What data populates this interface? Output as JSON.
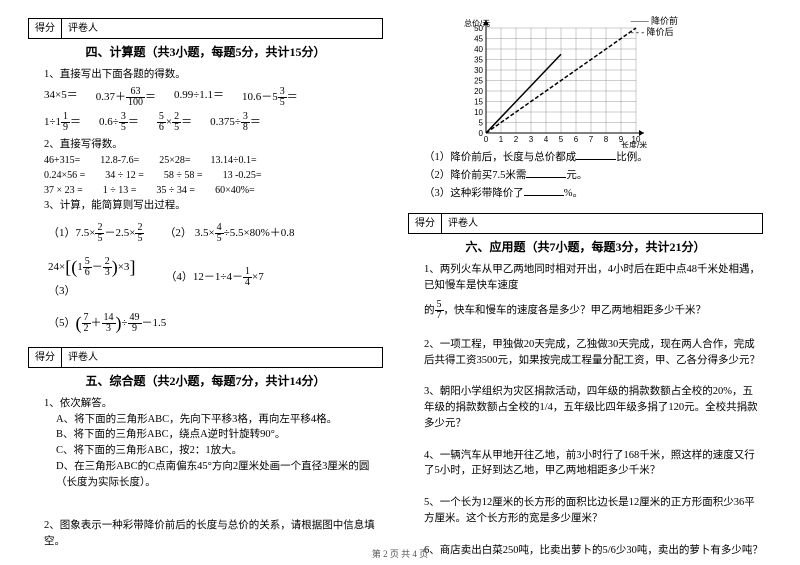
{
  "score_labels": {
    "score": "得分",
    "reviewer": "评卷人"
  },
  "section4": {
    "title": "四、计算题（共3小题，每题5分，共计15分）",
    "q1_intro": "1、直接写出下面各题的得数。",
    "row1": [
      "34×5＝",
      "0.37＋",
      "63",
      "100",
      "＝",
      "0.99÷1.1＝",
      "10.6－5",
      "3",
      "5",
      "＝"
    ],
    "row2_a": "1÷1",
    "row2_af": [
      "1",
      "9"
    ],
    "row2_ae": "＝",
    "row2_b": "0.6÷",
    "row2_bf": [
      "3",
      "5"
    ],
    "row2_be": "＝",
    "row2_cf1": [
      "5",
      "6"
    ],
    "row2_cm": "×",
    "row2_cf2": [
      "2",
      "5"
    ],
    "row2_ce": "＝",
    "row2_d": "0.375÷",
    "row2_df": [
      "3",
      "8"
    ],
    "row2_de": "＝",
    "q2_intro": "2、直接写得数。",
    "nr1": [
      "46+315=",
      "12.8-7.6=",
      "25×28=",
      "13.14÷0.1="
    ],
    "nr2": [
      "0.24×56 =",
      "34 ÷ 12 =",
      "58 ÷ 58 =",
      "13 -0.25="
    ],
    "nr3": [
      "37 × 23 =",
      "1 ÷ 13 =",
      "35 ÷ 34 =",
      "60×40%="
    ],
    "q3_intro": "3、计算，能简算则写出过程。",
    "e1_a": "（1）7.5×",
    "e1_f": [
      "2",
      "5"
    ],
    "e1_b": "－2.5×",
    "e1_c": "（2）",
    "e1_d": "3.5×",
    "e1_df": [
      "4",
      "5"
    ],
    "e1_e": "÷5.5×80%＋0.8",
    "e3_a": "24×",
    "e3_f1": [
      "5",
      "6"
    ],
    "e3_m": "－",
    "e3_f2": [
      "2",
      "3"
    ],
    "e3_b": "×3",
    "e4_a": "（4）12－1÷4－",
    "e4_f": [
      "1",
      "4"
    ],
    "e4_b": "×7",
    "e5_a": "（5）",
    "e5_f1": [
      "7",
      "2"
    ],
    "e5_m": "＋",
    "e5_f2": [
      "14",
      "3"
    ],
    "e5_b": "÷",
    "e5_f3": [
      "49",
      "9"
    ],
    "e5_c": "－1.5",
    "label3": "（3）"
  },
  "section5": {
    "title": "五、综合题（共2小题，每题7分，共计14分）",
    "q1": "1、依次解答。",
    "a": "A、将下面的三角形ABC，先向下平移3格，再向左平移4格。",
    "b": "B、将下面的三角形ABC，绕点A逆时针旋转90°。",
    "c": "C、将下面的三角形ABC，按2：1放大。",
    "d": "D、在三角形ABC的C点南偏东45°方向2厘米处画一个直径3厘米的圆（长度为实际长度）。",
    "q2": "2、图象表示一种彩带降价前后的长度与总价的关系，请根据图中信息填空。"
  },
  "chart": {
    "ylabel": "总价/元",
    "xlabel": "长度/米",
    "yticks": [
      0,
      5,
      10,
      15,
      20,
      25,
      30,
      35,
      40,
      45,
      50
    ],
    "xticks": [
      0,
      1,
      2,
      3,
      4,
      5,
      6,
      7,
      8,
      9,
      10
    ],
    "legend_before": "降价前",
    "legend_after": "降价后",
    "line_before": [
      {
        "x": 0,
        "y": 0
      },
      {
        "x": 5,
        "y": 37.5
      }
    ],
    "line_after": [
      {
        "x": 0,
        "y": 0
      },
      {
        "x": 10,
        "y": 50
      }
    ],
    "dash_before": "0",
    "dash_after": "4 2",
    "grid_color": "#999",
    "axis_color": "#000",
    "q1": "（1）降价前后，长度与总价都成",
    "q1b": "比例。",
    "q2": "（2）降价前买7.5米需",
    "q2b": "元。",
    "q3": "（3）这种彩带降价了",
    "q3b": "%。"
  },
  "section6": {
    "title": "六、应用题（共7小题，每题3分，共计21分）",
    "q1a": "1、两列火车从甲乙两地同时相对开出，4小时后在距中点48千米处相遇，已知慢车是快车速度",
    "q1b": "的",
    "q1f": [
      "5",
      "7"
    ],
    "q1c": "，快车和慢车的速度各是多少？甲乙两地相距多少千米？",
    "q2": "2、一项工程，甲独做20天完成，乙独做30天完成，现在两人合作，完成后共得工资3500元，如果按完成工程量分配工资，甲、乙各分得多少元？",
    "q3": "3、朝阳小学组织为灾区捐款活动，四年级的捐款数额占全校的20%，五年级的捐款数额占全校的1/4，五年级比四年级多捐了120元。全校共捐款多少元？",
    "q4": "4、一辆汽车从甲地开往乙地，前3小时行了168千米，照这样的速度又行了5小时，正好到达乙地，甲乙两地相距多少千米？",
    "q5": "5、一个长为12厘米的长方形的面积比边长是12厘米的正方形面积少36平方厘米。这个长方形的宽是多少厘米？",
    "q6": "6、商店卖出白菜250吨，比卖出萝卜的5/6少30吨，卖出的萝卜有多少吨？"
  },
  "footer": "第 2 页 共 4 页"
}
